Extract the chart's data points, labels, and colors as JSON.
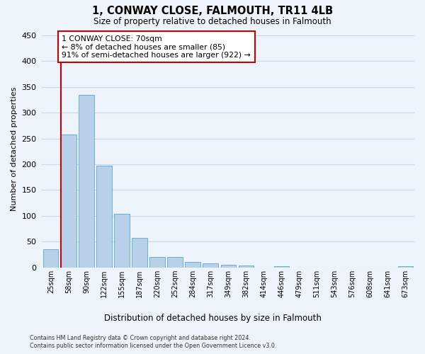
{
  "title": "1, CONWAY CLOSE, FALMOUTH, TR11 4LB",
  "subtitle": "Size of property relative to detached houses in Falmouth",
  "xlabel": "Distribution of detached houses by size in Falmouth",
  "ylabel": "Number of detached properties",
  "bar_labels": [
    "25sqm",
    "58sqm",
    "90sqm",
    "122sqm",
    "155sqm",
    "187sqm",
    "220sqm",
    "252sqm",
    "284sqm",
    "317sqm",
    "349sqm",
    "382sqm",
    "414sqm",
    "446sqm",
    "479sqm",
    "511sqm",
    "543sqm",
    "576sqm",
    "608sqm",
    "641sqm",
    "673sqm"
  ],
  "bar_values": [
    35,
    257,
    335,
    197,
    104,
    57,
    20,
    20,
    10,
    8,
    5,
    4,
    0,
    3,
    0,
    0,
    0,
    0,
    0,
    0,
    3
  ],
  "bar_color": "#b8d0e8",
  "bar_edgecolor": "#6baed6",
  "grid_color": "#c8d8ec",
  "vline_x": 0.57,
  "vline_color": "#cc0000",
  "annotation_text": "1 CONWAY CLOSE: 70sqm\n← 8% of detached houses are smaller (85)\n91% of semi-detached houses are larger (922) →",
  "annotation_box_color": "#ffffff",
  "annotation_box_edgecolor": "#cc0000",
  "ylim": [
    0,
    460
  ],
  "yticks": [
    0,
    50,
    100,
    150,
    200,
    250,
    300,
    350,
    400,
    450
  ],
  "footnote1": "Contains HM Land Registry data © Crown copyright and database right 2024.",
  "footnote2": "Contains public sector information licensed under the Open Government Licence v3.0.",
  "bg_color": "#eef4fb"
}
